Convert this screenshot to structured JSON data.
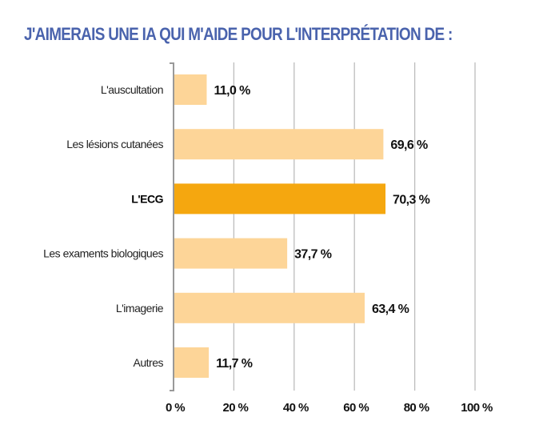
{
  "chart_data": {
    "type": "bar",
    "orientation": "horizontal",
    "title": "J'AIMERAIS UNE IA QUI M'AIDE POUR L'INTERPRÉTATION DE :",
    "categories": [
      "L'auscultation",
      "Les lésions cutanées",
      "L'ECG",
      "Les examents biologiques",
      "L'imagerie",
      "Autres"
    ],
    "values": [
      11.0,
      69.6,
      70.3,
      37.7,
      63.4,
      11.7
    ],
    "value_labels": [
      "11,0 %",
      "69,6 %",
      "70,3 %",
      "37,7 %",
      "63,4 %",
      "11,7 %"
    ],
    "highlighted": "L'ECG",
    "xlim": [
      0,
      100
    ],
    "xticks": [
      0,
      20,
      40,
      60,
      80,
      100
    ],
    "xtick_labels": [
      "0 %",
      "20 %",
      "40 %",
      "60 %",
      "80 %",
      "100 %"
    ],
    "xlabel": "",
    "ylabel": "",
    "grid": "vertical",
    "colors": {
      "bar": "#fdd598",
      "highlight": "#f5a70f",
      "title": "#4a63ad",
      "grid": "#bdbdbd"
    }
  }
}
